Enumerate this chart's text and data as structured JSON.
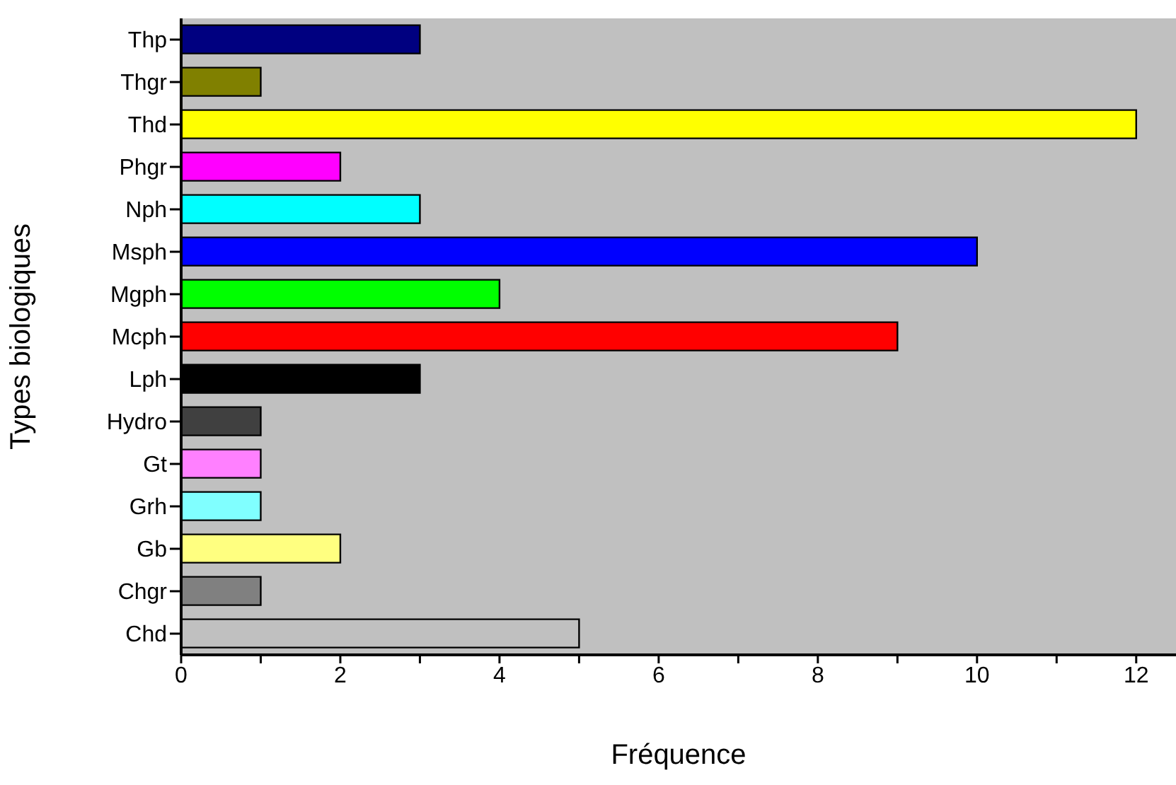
{
  "chart_data": {
    "type": "bar",
    "orientation": "horizontal",
    "xlabel": "Fréquence",
    "ylabel": "Types biologiques",
    "categories": [
      "Thp",
      "Thgr",
      "Thd",
      "Phgr",
      "Nph",
      "Msph",
      "Mgph",
      "Mcph",
      "Lph",
      "Hydro",
      "Gt",
      "Grh",
      "Gb",
      "Chgr",
      "Chd"
    ],
    "values": [
      3,
      1,
      12,
      2,
      3,
      10,
      4,
      9,
      3,
      1,
      1,
      1,
      2,
      1,
      5
    ],
    "colors": [
      "#000080",
      "#808000",
      "#ffff00",
      "#ff00ff",
      "#00ffff",
      "#0000ff",
      "#00ff00",
      "#ff0000",
      "#000000",
      "#404040",
      "#ff80ff",
      "#80ffff",
      "#ffff80",
      "#808080",
      "#c0c0c0"
    ],
    "xlim": [
      0,
      12.5
    ],
    "xticks": [
      0,
      {
        "value": 1,
        "label": null
      },
      2,
      {
        "value": 3,
        "label": null
      },
      4,
      {
        "value": 5,
        "label": null
      },
      6,
      {
        "value": 7,
        "label": null
      },
      8,
      {
        "value": 9,
        "label": null
      },
      10,
      {
        "value": 11,
        "label": null
      },
      12
    ],
    "grid": false
  }
}
